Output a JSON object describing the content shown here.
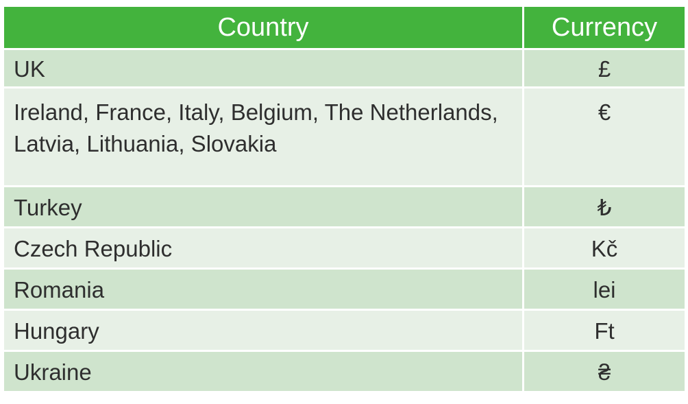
{
  "table": {
    "headers": {
      "country": "Country",
      "currency": "Currency"
    },
    "rows": [
      {
        "country": "UK",
        "currency": "£"
      },
      {
        "country": "Ireland, France, Italy, Belgium, The Netherlands, Latvia, Lithuania, Slovakia",
        "currency": "€"
      },
      {
        "country": "Turkey",
        "currency": "₺"
      },
      {
        "country": "Czech Republic",
        "currency": "Kč"
      },
      {
        "country": "Romania",
        "currency": "lei"
      },
      {
        "country": "Hungary",
        "currency": "Ft"
      },
      {
        "country": "Ukraine",
        "currency": "₴"
      }
    ]
  },
  "colors": {
    "header_bg": "#43b33d",
    "row_odd_bg": "#cfe4cd",
    "row_even_bg": "#e7f0e6",
    "text": "#2e2e2e"
  }
}
